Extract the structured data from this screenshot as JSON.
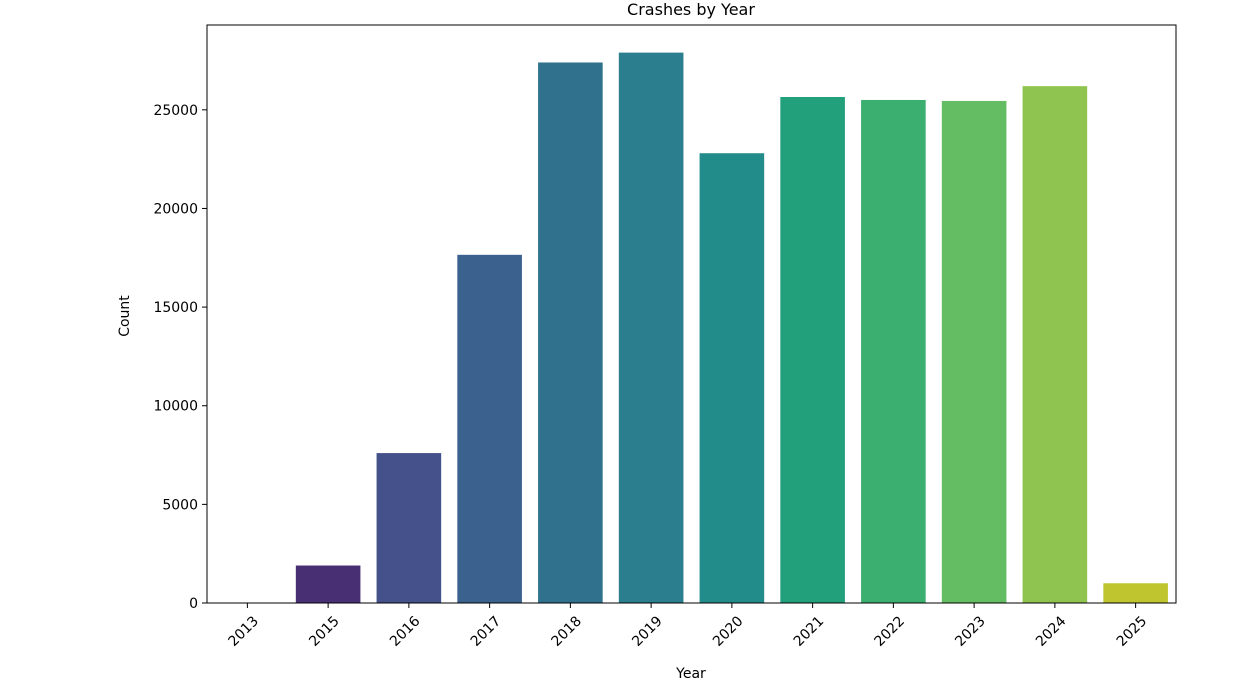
{
  "chart_data": {
    "type": "bar",
    "title": "Crashes by Year",
    "xlabel": "Year",
    "ylabel": "Count",
    "categories": [
      "2013",
      "2015",
      "2016",
      "2017",
      "2018",
      "2019",
      "2020",
      "2021",
      "2022",
      "2023",
      "2024",
      "2025"
    ],
    "values": [
      1,
      1900,
      7600,
      17650,
      27400,
      27900,
      22800,
      25650,
      25500,
      25450,
      26200,
      1000
    ],
    "ylim": [
      0,
      29300
    ],
    "yticks": [
      0,
      5000,
      10000,
      15000,
      20000,
      25000
    ],
    "ytick_labels": [
      "0",
      "5000",
      "10000",
      "15000",
      "20000",
      "25000"
    ],
    "grid": false,
    "legend": "none",
    "xtick_rotation": 45,
    "colors": [
      "#440154",
      "#482f74",
      "#44518a",
      "#3b628f",
      "#30728e",
      "#2a7e8e",
      "#228c8a",
      "#22a07c",
      "#3aaf6f",
      "#64bd63",
      "#8ec44f",
      "#bec52e"
    ]
  }
}
